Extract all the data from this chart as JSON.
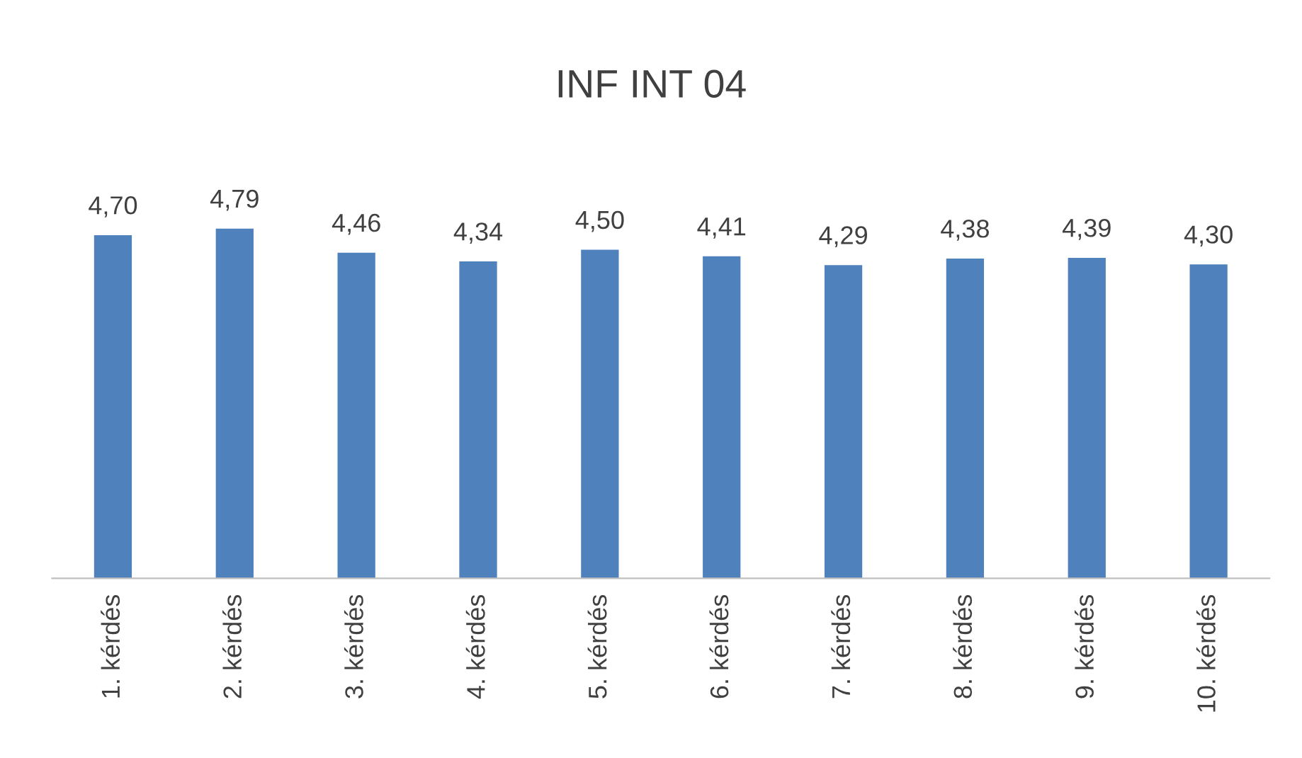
{
  "chart_data": {
    "type": "bar",
    "title": "INF INT 04",
    "categories": [
      "1. kérdés",
      "2. kérdés",
      "3. kérdés",
      "4. kérdés",
      "5. kérdés",
      "6. kérdés",
      "7. kérdés",
      "8. kérdés",
      "9. kérdés",
      "10. kérdés"
    ],
    "values": [
      4.7,
      4.79,
      4.46,
      4.34,
      4.5,
      4.41,
      4.29,
      4.38,
      4.39,
      4.3
    ],
    "value_labels": [
      "4,70",
      "4,79",
      "4,46",
      "4,34",
      "4,50",
      "4,41",
      "4,29",
      "4,38",
      "4,39",
      "4,30"
    ],
    "color": "#4f81bd",
    "grid": false,
    "legend": false
  }
}
